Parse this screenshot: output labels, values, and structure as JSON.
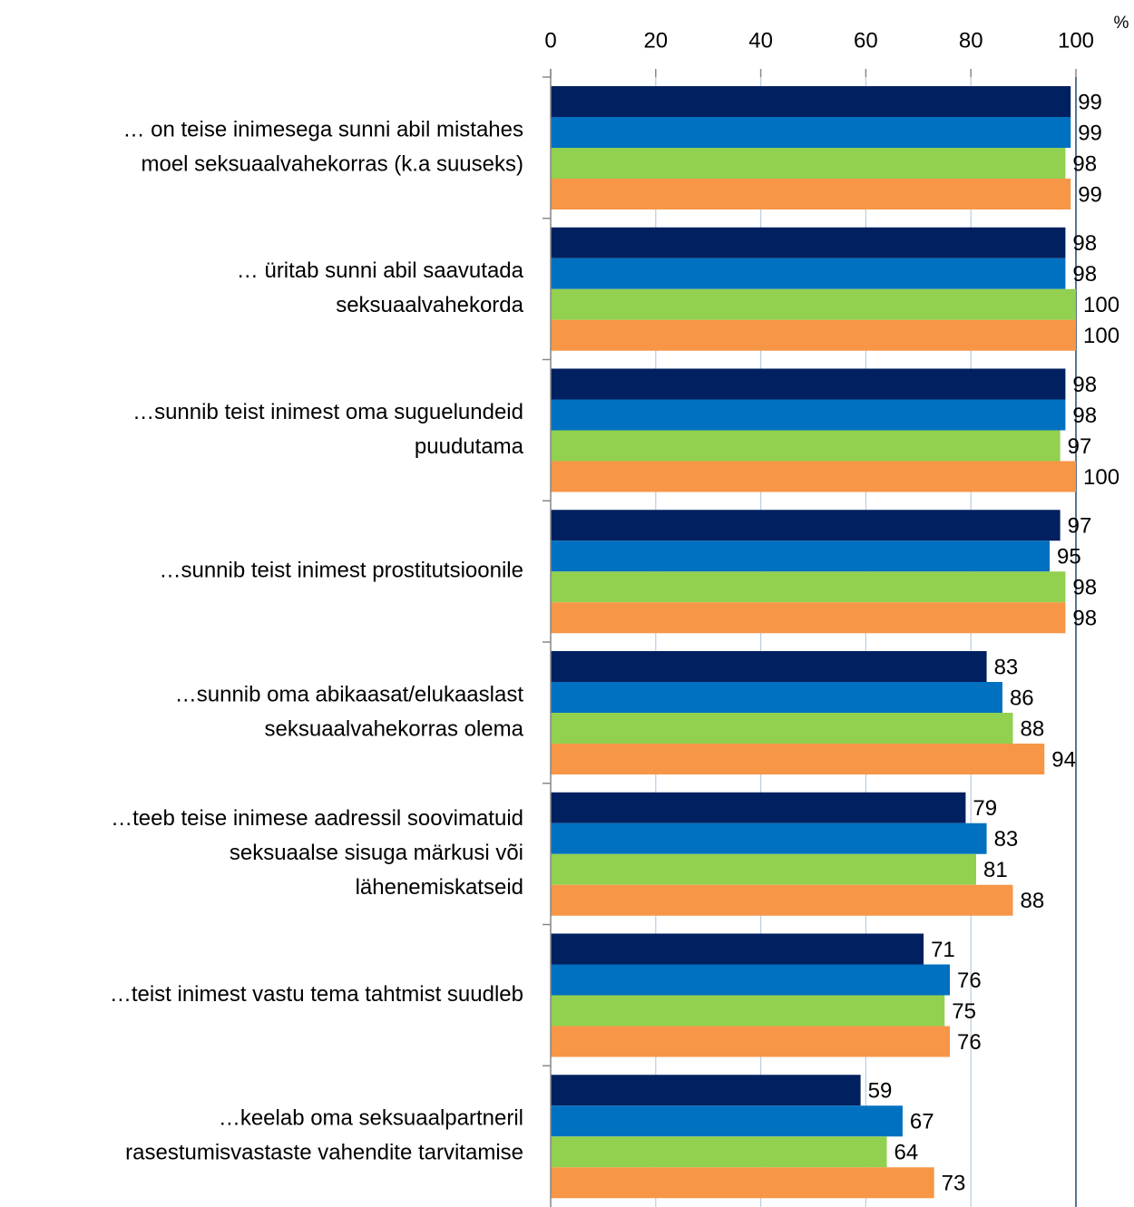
{
  "chart_data": {
    "type": "hbar",
    "unit": "%",
    "categories": [
      [
        "… on teise inimesega sunni abil mistahes",
        "moel seksuaalvahekorras (k.a  suuseks)"
      ],
      [
        "… üritab sunni abil saavutada",
        "seksuaalvahekorda"
      ],
      [
        "…sunnib teist inimest oma suguelundeid",
        "puudutama"
      ],
      [
        "…sunnib teist inimest prostitutsioonile"
      ],
      [
        "…sunnib oma abikaasat/elukaaslast",
        "seksuaalvahekorras olema"
      ],
      [
        "…teeb teise inimese aadressil soovimatuid",
        "seksuaalse sisuga märkusi või",
        "lähenemiskatseid"
      ],
      [
        "…teist inimest vastu tema tahtmist suudleb"
      ],
      [
        "…keelab  oma seksuaalpartneril",
        "rasestumisvastaste vahendite tarvitamise"
      ]
    ],
    "series": [
      {
        "color": "#002060",
        "values": [
          99,
          98,
          98,
          97,
          83,
          79,
          71,
          59
        ]
      },
      {
        "color": "#0070c0",
        "values": [
          99,
          98,
          98,
          95,
          86,
          83,
          76,
          67
        ]
      },
      {
        "color": "#92d050",
        "values": [
          98,
          100,
          97,
          98,
          88,
          81,
          75,
          64
        ]
      },
      {
        "color": "#f79646",
        "values": [
          99,
          100,
          100,
          98,
          94,
          88,
          76,
          73
        ]
      }
    ],
    "xlim": [
      0,
      100
    ],
    "xticks": [
      0,
      20,
      40,
      60,
      80,
      100
    ],
    "grid": true
  }
}
